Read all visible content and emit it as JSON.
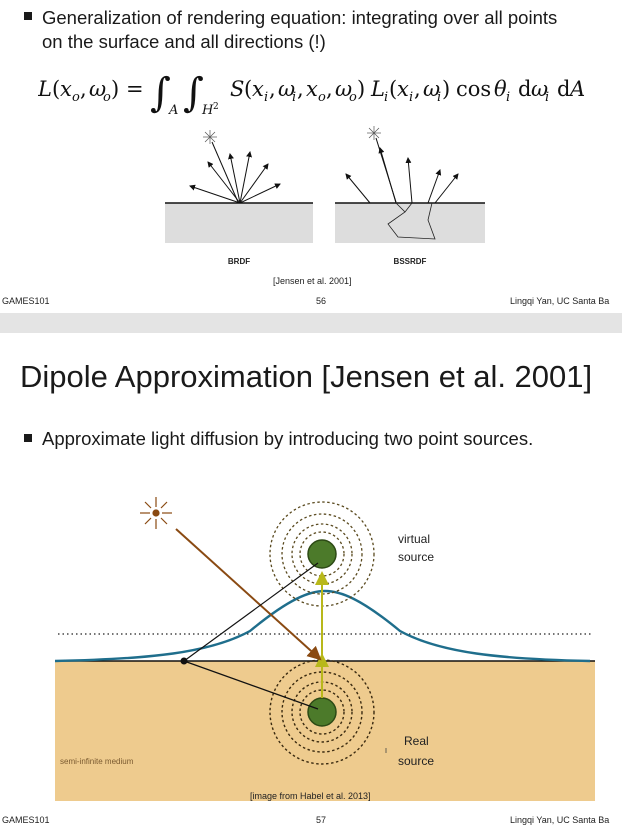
{
  "slide56": {
    "bullet": "Generalization of rendering equation: integrating over all points on the surface and all directions (!)",
    "bullet_line1": "Generalization of rendering equation: integrating over all points",
    "bullet_line2": "on the surface and all directions (!)",
    "equation": "L(x_o, ω_o) = ∫_A ∫_{H²} S(x_i, ω_i, x_o, ω_o) L_i(x_i, ω_i) cos θ_i dω_i dA",
    "label_brdf": "BRDF",
    "label_bssrdf": "BSSRDF",
    "citation": "[Jensen et al. 2001]",
    "footer_left": "GAMES101",
    "page_number": "56",
    "footer_right": "Lingqi Yan, UC Santa Ba"
  },
  "slide57": {
    "title": "Dipole Approximation [Jensen et al. 2001]",
    "bullet": "Approximate light diffusion by introducing two point sources.",
    "label_virtual_1": "virtual",
    "label_virtual_2": "source",
    "label_real_1": "Real",
    "label_real_2": "source",
    "label_medium": "semi-infinite medium",
    "citation": "[image from Habel et al. 2013]",
    "footer_left": "GAMES101",
    "page_number": "57",
    "footer_right": "Lingqi Yan, UC Santa Ba",
    "colors": {
      "medium": "#eecb8e",
      "curve": "#1f6e8c",
      "source": "#4c7a2a",
      "source_ring": "#5a4a1f",
      "light_ray": "#8a4a12",
      "arrow": "#b8b81a"
    }
  }
}
